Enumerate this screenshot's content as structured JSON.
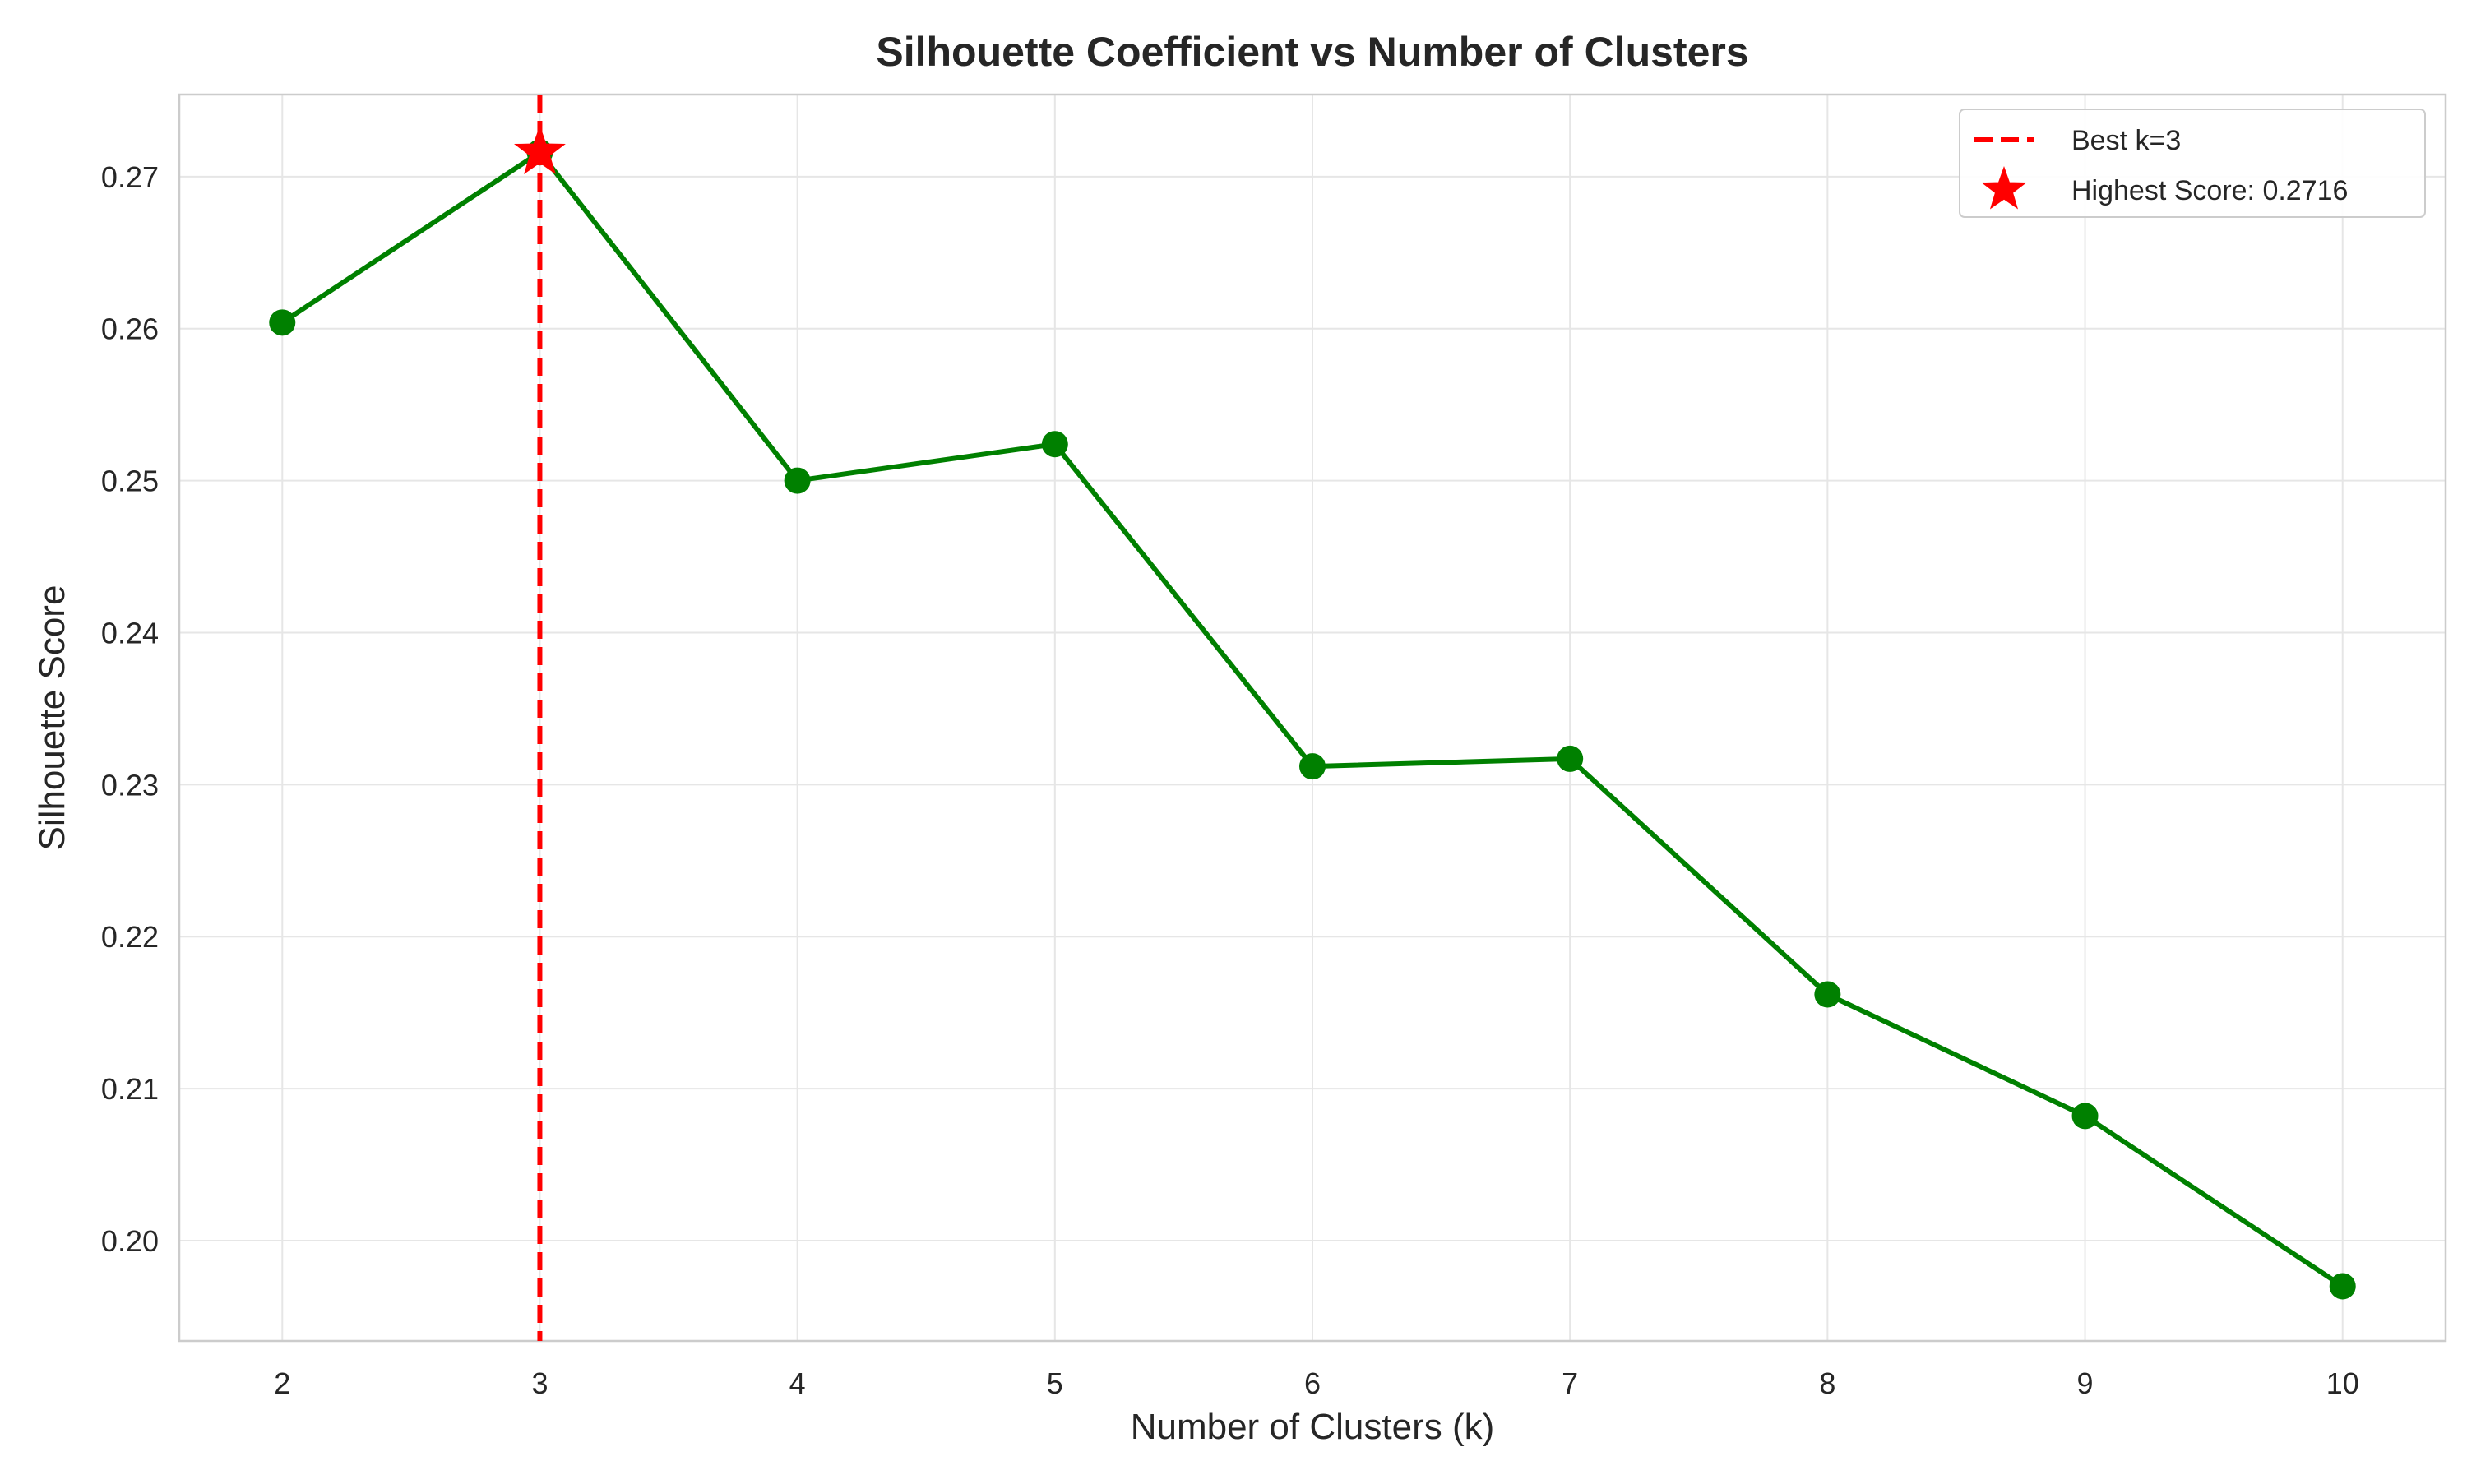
{
  "chart_data": {
    "type": "line",
    "title": "Silhouette Coefficient vs Number of Clusters",
    "xlabel": "Number of Clusters (k)",
    "ylabel": "Silhouette Score",
    "x": [
      2,
      3,
      4,
      5,
      6,
      7,
      8,
      9,
      10
    ],
    "xlim": [
      1.6,
      10.4
    ],
    "ylim": [
      0.1934,
      0.2754
    ],
    "x_ticks": [
      2,
      3,
      4,
      5,
      6,
      7,
      8,
      9,
      10
    ],
    "y_ticks": [
      0.2,
      0.21,
      0.22,
      0.23,
      0.24,
      0.25,
      0.26,
      0.27
    ],
    "y_tick_labels": [
      "0.20",
      "0.21",
      "0.22",
      "0.23",
      "0.24",
      "0.25",
      "0.26",
      "0.27"
    ],
    "grid": true,
    "series": [
      {
        "values": [
          0.2604,
          0.2716,
          0.25,
          0.2524,
          0.2312,
          0.2317,
          0.2162,
          0.2082,
          0.197
        ],
        "color": "#008000",
        "marker": "circle"
      }
    ],
    "best_k_line": {
      "x": 3,
      "label": "Best k=3",
      "color": "#ff0000",
      "style": "dashed"
    },
    "highlight_point": {
      "x": 3,
      "y": 0.2716,
      "label": "Highest Score: 0.2716",
      "color": "#ff0000",
      "marker": "star"
    },
    "legend": {
      "placement": "top-right",
      "entries": [
        "Best k=3",
        "Highest Score: 0.2716"
      ]
    }
  }
}
